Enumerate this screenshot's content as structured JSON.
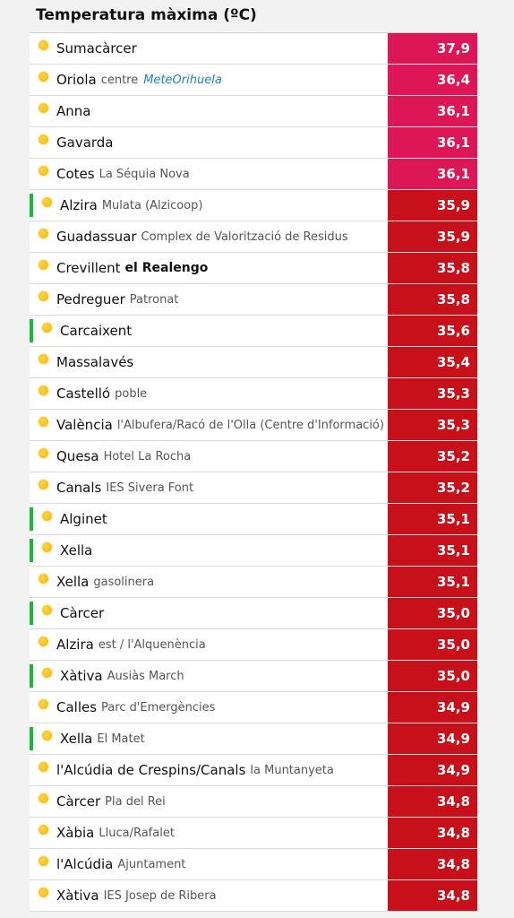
{
  "title": "Temperatura màxima (ºC)",
  "colors": {
    "pink": "#dc1657",
    "red": "#c8101a",
    "green_marker": "#1db53a",
    "sun": "#f4b400"
  },
  "rows": [
    {
      "station": "Sumacàrcer",
      "sub": "",
      "value": "37,9",
      "color": "pink",
      "flag": false
    },
    {
      "station": "Oriola",
      "sub": "centre",
      "value": "36,4",
      "color": "pink",
      "flag": false,
      "logo": "MeteOrihuela"
    },
    {
      "station": "Anna",
      "sub": "",
      "value": "36,1",
      "color": "pink",
      "flag": false
    },
    {
      "station": "Gavarda",
      "sub": "",
      "value": "36,1",
      "color": "pink",
      "flag": false
    },
    {
      "station": "Cotes",
      "sub": "La Séquia Nova",
      "value": "36,1",
      "color": "pink",
      "flag": false
    },
    {
      "station": "Alzira",
      "sub": "Mulata (Alzicoop)",
      "value": "35,9",
      "color": "red",
      "flag": true
    },
    {
      "station": "Guadassuar",
      "sub": "Complex de Valorització de Residus",
      "value": "35,9",
      "color": "red",
      "flag": false
    },
    {
      "station": "Crevillent",
      "sub": "el Realengo",
      "value": "35,8",
      "color": "red",
      "flag": false,
      "sub_bold": true
    },
    {
      "station": "Pedreguer",
      "sub": "Patronat",
      "value": "35,8",
      "color": "red",
      "flag": false
    },
    {
      "station": "Carcaixent",
      "sub": "",
      "value": "35,6",
      "color": "red",
      "flag": true
    },
    {
      "station": "Massalavés",
      "sub": "",
      "value": "35,4",
      "color": "red",
      "flag": false
    },
    {
      "station": "Castelló",
      "sub": "poble",
      "value": "35,3",
      "color": "red",
      "flag": false
    },
    {
      "station": "València",
      "sub": "l'Albufera/Racó de l'Olla (Centre d'Informació)",
      "value": "35,3",
      "color": "red",
      "flag": false
    },
    {
      "station": "Quesa",
      "sub": "Hotel La Rocha",
      "value": "35,2",
      "color": "red",
      "flag": false
    },
    {
      "station": "Canals",
      "sub": "IES Sivera Font",
      "value": "35,2",
      "color": "red",
      "flag": false
    },
    {
      "station": "Alginet",
      "sub": "",
      "value": "35,1",
      "color": "red",
      "flag": true
    },
    {
      "station": "Xella",
      "sub": "",
      "value": "35,1",
      "color": "red",
      "flag": true
    },
    {
      "station": "Xella",
      "sub": "gasolinera",
      "value": "35,1",
      "color": "red",
      "flag": false
    },
    {
      "station": "Càrcer",
      "sub": "",
      "value": "35,0",
      "color": "red",
      "flag": true
    },
    {
      "station": "Alzira",
      "sub": "est / l'Alquenència",
      "value": "35,0",
      "color": "red",
      "flag": false
    },
    {
      "station": "Xàtiva",
      "sub": "Ausiàs March",
      "value": "35,0",
      "color": "red",
      "flag": true
    },
    {
      "station": "Calles",
      "sub": "Parc d'Emergències",
      "value": "34,9",
      "color": "red",
      "flag": false
    },
    {
      "station": "Xella",
      "sub": "El Matet",
      "value": "34,9",
      "color": "red",
      "flag": true
    },
    {
      "station": "l'Alcúdia de Crespins/Canals",
      "sub": "la Muntanyeta",
      "value": "34,9",
      "color": "red",
      "flag": false
    },
    {
      "station": "Càrcer",
      "sub": "Pla del Rei",
      "value": "34,8",
      "color": "red",
      "flag": false
    },
    {
      "station": "Xàbia",
      "sub": "Lluca/Rafalet",
      "value": "34,8",
      "color": "red",
      "flag": false
    },
    {
      "station": "l'Alcúdia",
      "sub": "Ajuntament",
      "value": "34,8",
      "color": "red",
      "flag": false
    },
    {
      "station": "Xàtiva",
      "sub": "IES Josep de Ribera",
      "value": "34,8",
      "color": "red",
      "flag": false
    }
  ]
}
